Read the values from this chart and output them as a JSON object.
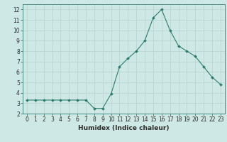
{
  "x": [
    0,
    1,
    2,
    3,
    4,
    5,
    6,
    7,
    8,
    9,
    10,
    11,
    12,
    13,
    14,
    15,
    16,
    17,
    18,
    19,
    20,
    21,
    22,
    23
  ],
  "y": [
    3.3,
    3.3,
    3.3,
    3.3,
    3.3,
    3.3,
    3.3,
    3.3,
    2.5,
    2.5,
    3.9,
    6.5,
    7.3,
    8.0,
    9.0,
    11.2,
    12.0,
    10.0,
    8.5,
    8.0,
    7.5,
    6.5,
    5.5,
    4.8
  ],
  "line_color": "#2d7d6e",
  "marker": "D",
  "marker_size": 2.0,
  "bg_color": "#cde8e5",
  "grid_color": "#b0ceca",
  "xlabel": "Humidex (Indice chaleur)",
  "xlabel_fontsize": 6.5,
  "xlim": [
    -0.5,
    23.5
  ],
  "ylim": [
    2,
    12.5
  ],
  "yticks": [
    2,
    3,
    4,
    5,
    6,
    7,
    8,
    9,
    10,
    11,
    12
  ],
  "xtick_labels": [
    "0",
    "1",
    "2",
    "3",
    "4",
    "5",
    "6",
    "7",
    "8",
    "9",
    "10",
    "11",
    "12",
    "13",
    "14",
    "15",
    "16",
    "17",
    "18",
    "19",
    "20",
    "21",
    "22",
    "23"
  ],
  "tick_fontsize": 5.5,
  "label_color": "#2d2d2d",
  "spine_color": "#2d7d6e",
  "grid_major_color": "#c4d8d5",
  "grid_minor_color": "#d4e8e4"
}
